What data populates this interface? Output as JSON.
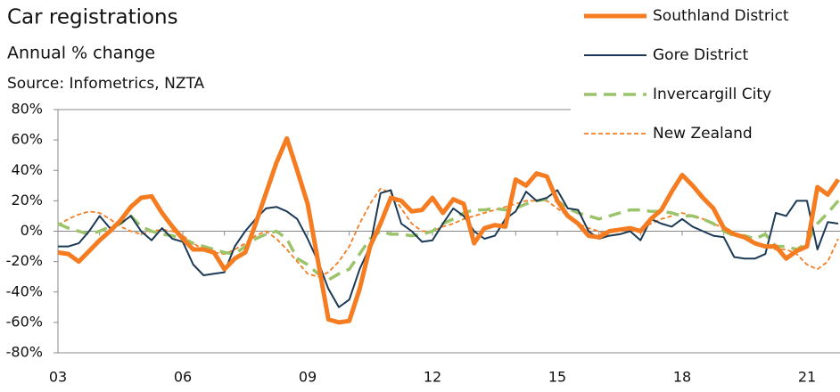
{
  "chart_data": {
    "type": "line",
    "title": "Car registrations",
    "subtitle": "Annual % change",
    "source": "Source: Infometrics, NZTA",
    "categories": [
      "03",
      null,
      null,
      null,
      null,
      null,
      null,
      null,
      null,
      null,
      null,
      null,
      "06",
      null,
      null,
      null,
      null,
      null,
      null,
      null,
      null,
      null,
      null,
      null,
      "09",
      null,
      null,
      null,
      null,
      null,
      null,
      null,
      null,
      null,
      null,
      null,
      "12",
      null,
      null,
      null,
      null,
      null,
      null,
      null,
      null,
      null,
      null,
      null,
      "15",
      null,
      null,
      null,
      null,
      null,
      null,
      null,
      null,
      null,
      null,
      null,
      "18",
      null,
      null,
      null,
      null,
      null,
      null,
      null,
      null,
      null,
      null,
      null,
      "21",
      null,
      null,
      null
    ],
    "series": [
      {
        "name": "Southland District",
        "color": "#f57c20",
        "line_style": "solid",
        "line_width": 5,
        "values": [
          -14,
          -15,
          -20,
          -13,
          -6,
          0,
          7,
          16,
          22,
          23,
          12,
          3,
          -5,
          -12,
          -12,
          -14,
          -25,
          -18,
          -14,
          5,
          25,
          45,
          61,
          40,
          18,
          -20,
          -58,
          -60,
          -59,
          -38,
          -10,
          5,
          22,
          20,
          13,
          14,
          22,
          12,
          21,
          18,
          -8,
          2,
          4,
          3,
          34,
          30,
          38,
          36,
          20,
          10,
          5,
          -3,
          -4,
          0,
          1,
          2,
          0,
          8,
          14,
          26,
          37,
          30,
          22,
          15,
          2,
          -2,
          -4,
          -8,
          -10,
          -10,
          -18,
          -13,
          -10,
          29,
          24,
          34
        ]
      },
      {
        "name": "Gore District",
        "color": "#1c3a55",
        "line_style": "solid",
        "line_width": 2,
        "values": [
          -10,
          -10,
          -8,
          0,
          10,
          2,
          5,
          10,
          0,
          -6,
          2,
          -5,
          -7,
          -22,
          -29,
          -28,
          -27,
          -10,
          0,
          8,
          15,
          16,
          13,
          8,
          -5,
          -20,
          -38,
          -50,
          -45,
          -25,
          -10,
          25,
          27,
          5,
          0,
          -7,
          -6,
          5,
          15,
          10,
          0,
          -5,
          -3,
          8,
          13,
          26,
          20,
          22,
          27,
          15,
          14,
          0,
          -5,
          -3,
          -2,
          0,
          -6,
          8,
          5,
          3,
          8,
          3,
          0,
          -3,
          -4,
          -17,
          -18,
          -18,
          -15,
          12,
          10,
          20,
          20,
          -12,
          6,
          5
        ]
      },
      {
        "name": "Invercargill City",
        "color": "#9bc46a",
        "line_style": "dashed",
        "line_width": 3.5,
        "values": [
          5,
          2,
          0,
          -2,
          0,
          3,
          5,
          10,
          3,
          0,
          -2,
          -3,
          -5,
          -8,
          -10,
          -12,
          -14,
          -15,
          -10,
          -5,
          -2,
          0,
          -5,
          -18,
          -22,
          -28,
          -32,
          -28,
          -25,
          -15,
          -5,
          0,
          -2,
          -2,
          -3,
          -2,
          0,
          5,
          8,
          12,
          14,
          14,
          15,
          14,
          15,
          18,
          20,
          21,
          20,
          15,
          12,
          10,
          8,
          10,
          12,
          14,
          14,
          13,
          13,
          12,
          10,
          10,
          8,
          5,
          0,
          -3,
          -3,
          -5,
          -2,
          -10,
          -10,
          -12,
          -8,
          5,
          12,
          20
        ]
      },
      {
        "name": "New Zealand",
        "color": "#f57c20",
        "line_style": "dashed",
        "line_width": 1.8,
        "values": [
          4,
          8,
          11,
          13,
          12,
          8,
          3,
          0,
          -2,
          0,
          1,
          0,
          -3,
          -8,
          -12,
          -14,
          -15,
          -12,
          -8,
          -3,
          0,
          -5,
          -12,
          -20,
          -28,
          -30,
          -27,
          -20,
          -10,
          5,
          18,
          28,
          25,
          15,
          5,
          0,
          0,
          3,
          5,
          8,
          10,
          12,
          14,
          16,
          18,
          20,
          20,
          20,
          15,
          10,
          5,
          2,
          0,
          -3,
          -2,
          0,
          2,
          5,
          8,
          10,
          12,
          10,
          8,
          5,
          2,
          -2,
          -5,
          -8,
          -10,
          -12,
          -12,
          -15,
          -22,
          -25,
          -20,
          -5
        ]
      }
    ],
    "ylim": [
      -80,
      80
    ],
    "yticks": [
      {
        "value": -80,
        "label": "-80%"
      },
      {
        "value": -60,
        "label": "-60%"
      },
      {
        "value": -40,
        "label": "-40%"
      },
      {
        "value": -20,
        "label": "-20%"
      },
      {
        "value": 0,
        "label": "0%"
      },
      {
        "value": 20,
        "label": "20%"
      },
      {
        "value": 40,
        "label": "40%"
      },
      {
        "value": 60,
        "label": "60%"
      },
      {
        "value": 80,
        "label": "80%"
      }
    ],
    "legend": "top-right"
  }
}
